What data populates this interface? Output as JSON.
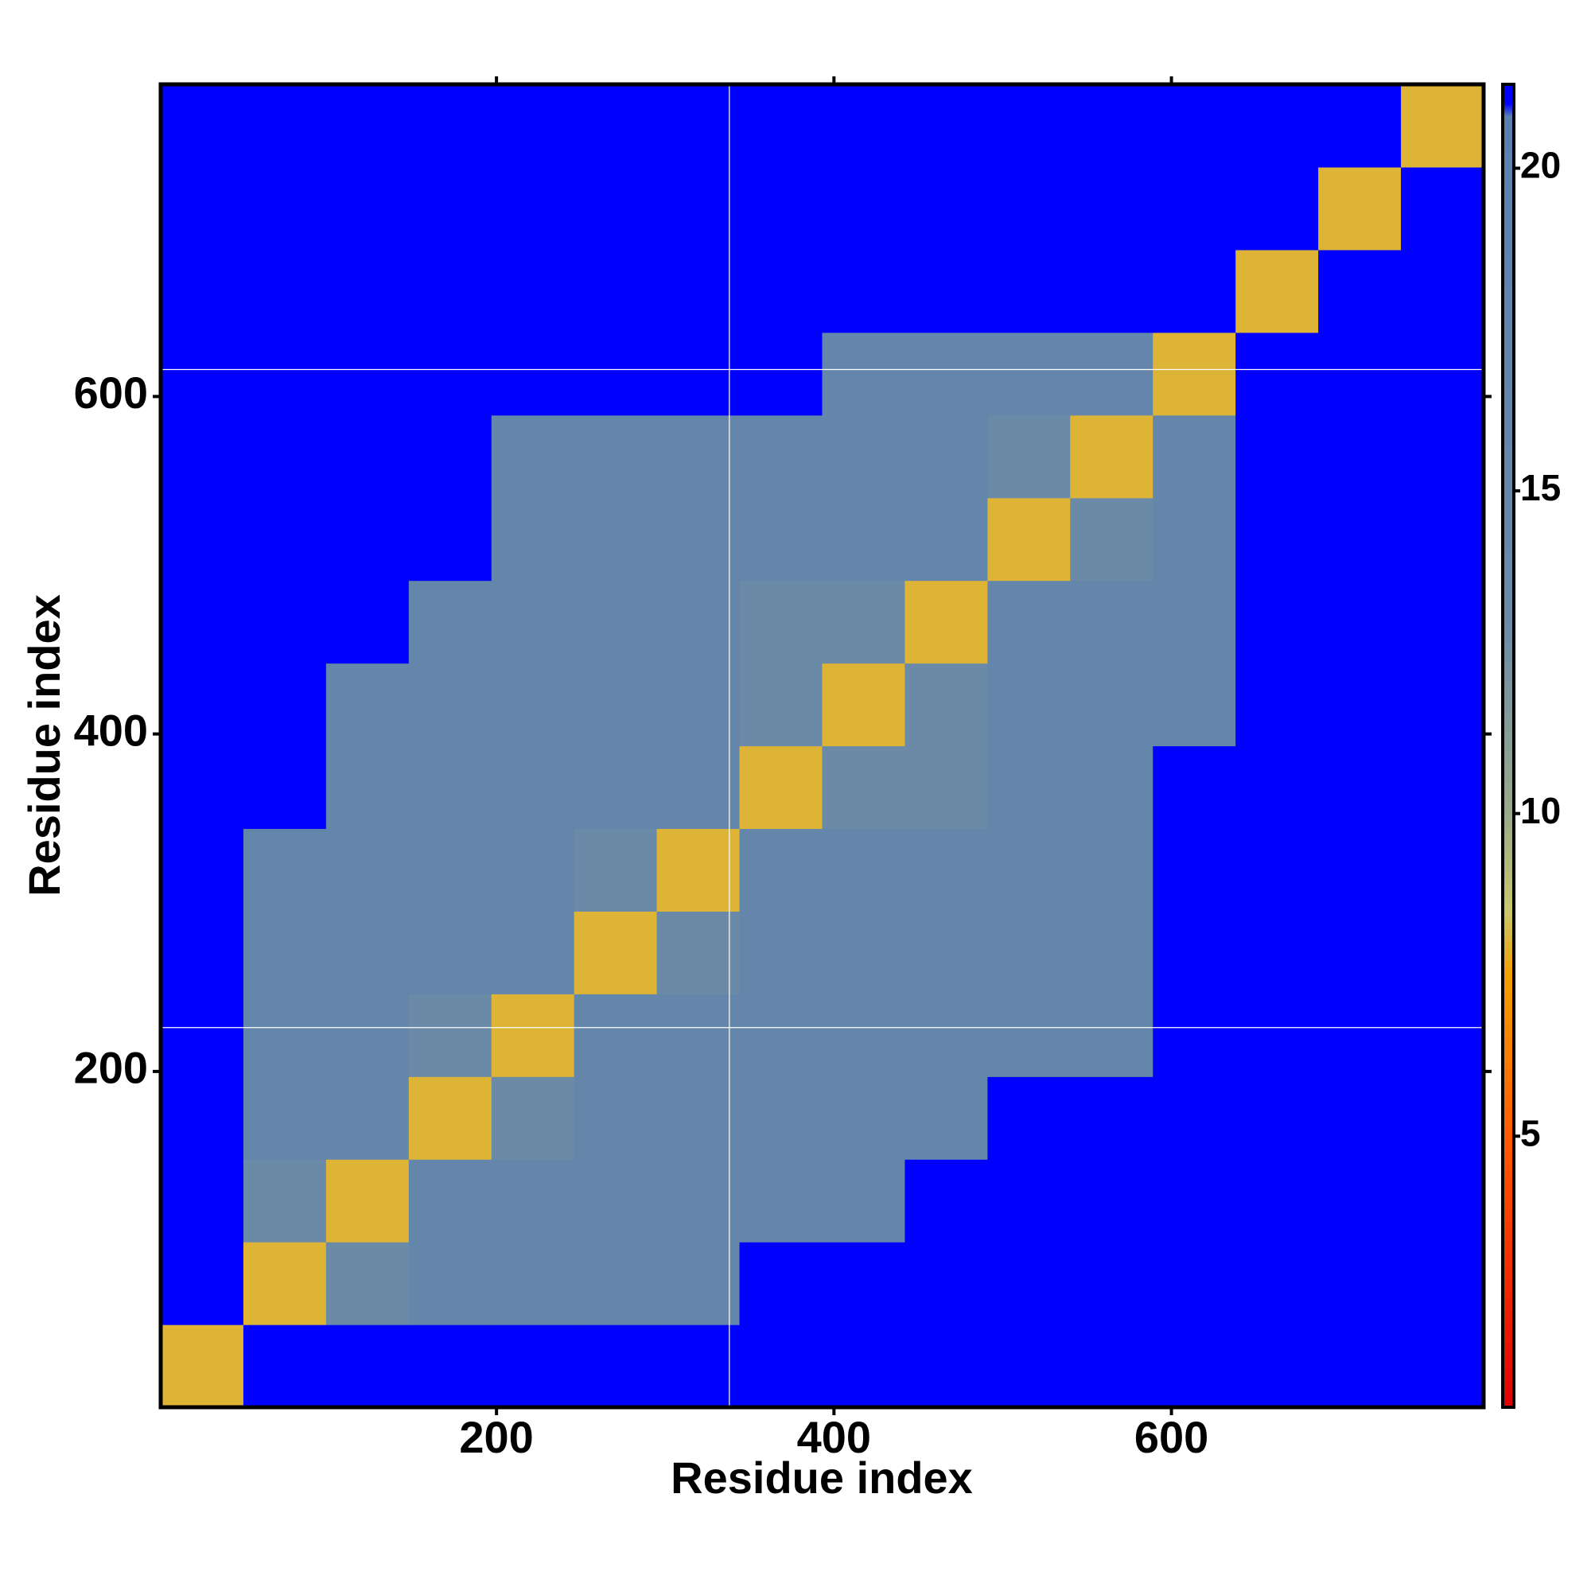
{
  "chart_data": {
    "type": "heatmap",
    "xlabel": "Residue index",
    "ylabel": "Residue index",
    "xbins": [
      1,
      50,
      99,
      148,
      197,
      246,
      295,
      344,
      393,
      442,
      491,
      540,
      589,
      638,
      687,
      736,
      785
    ],
    "ybins": [
      1,
      50,
      99,
      148,
      197,
      246,
      295,
      344,
      393,
      442,
      491,
      540,
      589,
      638,
      687,
      736,
      785
    ],
    "values": [
      [
        8,
        21,
        21,
        21,
        21,
        21,
        21,
        21,
        21,
        21,
        21,
        21,
        21,
        21,
        21,
        21
      ],
      [
        21,
        8,
        13,
        16,
        16,
        16,
        16,
        21,
        21,
        21,
        21,
        21,
        21,
        21,
        21,
        21
      ],
      [
        21,
        13,
        8,
        16,
        16,
        16,
        16,
        16,
        16,
        21,
        21,
        21,
        21,
        21,
        21,
        21
      ],
      [
        21,
        16,
        16,
        8,
        13,
        16,
        16,
        16,
        16,
        16,
        21,
        21,
        21,
        21,
        21,
        21
      ],
      [
        21,
        16,
        16,
        13,
        8,
        16,
        16,
        16,
        16,
        16,
        16,
        16,
        21,
        21,
        21,
        21
      ],
      [
        21,
        16,
        16,
        16,
        16,
        8,
        13,
        16,
        16,
        16,
        16,
        16,
        21,
        21,
        21,
        21
      ],
      [
        21,
        16,
        16,
        16,
        16,
        13,
        8,
        16,
        16,
        16,
        16,
        16,
        21,
        21,
        21,
        21
      ],
      [
        21,
        21,
        16,
        16,
        16,
        16,
        16,
        8,
        13,
        13,
        16,
        16,
        21,
        21,
        21,
        21
      ],
      [
        21,
        21,
        16,
        16,
        16,
        16,
        16,
        13,
        8,
        13,
        16,
        16,
        16,
        21,
        21,
        21
      ],
      [
        21,
        21,
        21,
        16,
        16,
        16,
        16,
        13,
        13,
        8,
        16,
        16,
        16,
        21,
        21,
        21
      ],
      [
        21,
        21,
        21,
        21,
        16,
        16,
        16,
        16,
        16,
        16,
        8,
        13,
        16,
        21,
        21,
        21
      ],
      [
        21,
        21,
        21,
        21,
        16,
        16,
        16,
        16,
        16,
        16,
        13,
        8,
        16,
        21,
        21,
        21
      ],
      [
        21,
        21,
        21,
        21,
        21,
        21,
        21,
        21,
        16,
        16,
        16,
        16,
        8,
        21,
        21,
        21
      ],
      [
        21,
        21,
        21,
        21,
        21,
        21,
        21,
        21,
        21,
        21,
        21,
        21,
        21,
        8,
        21,
        21
      ],
      [
        21,
        21,
        21,
        21,
        21,
        21,
        21,
        21,
        21,
        21,
        21,
        21,
        21,
        21,
        8,
        21
      ],
      [
        21,
        21,
        21,
        21,
        21,
        21,
        21,
        21,
        21,
        21,
        21,
        21,
        21,
        21,
        21,
        8
      ]
    ],
    "xlim": [
      1,
      785
    ],
    "ylim": [
      1,
      785
    ],
    "xticks": [
      200,
      400,
      600
    ],
    "yticks": [
      200,
      400,
      600
    ],
    "reference_lines": {
      "x": [
        338
      ],
      "y": [
        226,
        616
      ],
      "color": "#ffffff"
    },
    "colorbar": {
      "zlim": [
        0.8,
        21.3
      ],
      "zticks": [
        5,
        10,
        15,
        20
      ],
      "colorscale": [
        [
          0.8,
          "#e00000"
        ],
        [
          5,
          "#ff5a00"
        ],
        [
          7.5,
          "#f2a000"
        ],
        [
          8.5,
          "#c8c86c"
        ],
        [
          10,
          "#9aaa8a"
        ],
        [
          13,
          "#6a8aa8"
        ],
        [
          20.8,
          "#5a80b0"
        ],
        [
          21,
          "#0000ff"
        ],
        [
          21.3,
          "#0000ff"
        ]
      ]
    }
  }
}
